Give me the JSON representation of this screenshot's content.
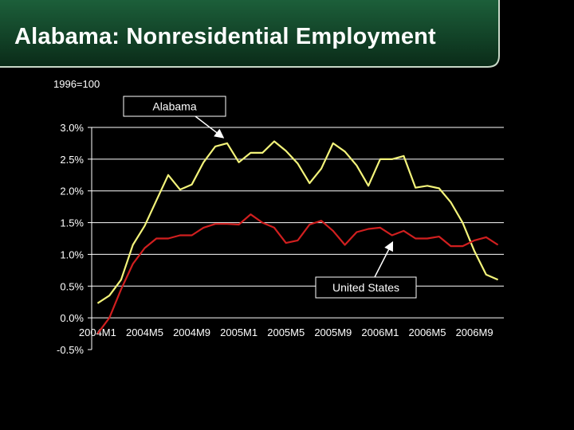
{
  "slide": {
    "title": "Alabama: Nonresidential Employment",
    "index_note": "1996=100"
  },
  "colors": {
    "header_green": "#1c5f3a",
    "header_dark": "#0a2b18",
    "background": "#000000",
    "alabama_line": "#f3f37a",
    "us_line": "#d11f1f",
    "gridline": "#ffffff"
  },
  "chart_data": {
    "type": "line",
    "x": [
      "2004M1",
      "2004M2",
      "2004M3",
      "2004M4",
      "2004M5",
      "2004M6",
      "2004M7",
      "2004M8",
      "2004M9",
      "2004M10",
      "2004M11",
      "2004M12",
      "2005M1",
      "2005M2",
      "2005M3",
      "2005M4",
      "2005M5",
      "2005M6",
      "2005M7",
      "2005M8",
      "2005M9",
      "2005M10",
      "2005M11",
      "2005M12",
      "2006M1",
      "2006M2",
      "2006M3",
      "2006M4",
      "2006M5",
      "2006M6",
      "2006M7",
      "2006M8",
      "2006M9",
      "2006M10",
      "2006M11"
    ],
    "x_tick_labels": [
      "2004M1",
      "2004M5",
      "2004M9",
      "2005M1",
      "2005M5",
      "2005M9",
      "2006M1",
      "2006M5",
      "2006M9"
    ],
    "y_tick_labels": [
      "3.0%",
      "2.5%",
      "2.0%",
      "1.5%",
      "1.0%",
      "0.5%",
      "0.0%",
      "-0.5%"
    ],
    "ylim": [
      -0.5,
      3.0
    ],
    "grid": true,
    "series": [
      {
        "name": "Alabama",
        "values": [
          0.23,
          0.35,
          0.6,
          1.15,
          1.45,
          1.85,
          2.25,
          2.02,
          2.1,
          2.45,
          2.7,
          2.75,
          2.45,
          2.6,
          2.6,
          2.78,
          2.63,
          2.43,
          2.12,
          2.35,
          2.75,
          2.62,
          2.4,
          2.08,
          2.5,
          2.5,
          2.55,
          2.05,
          2.08,
          2.04,
          1.82,
          1.5,
          1.05,
          0.68,
          0.6
        ]
      },
      {
        "name": "United States",
        "values": [
          -0.25,
          0.0,
          0.45,
          0.85,
          1.1,
          1.25,
          1.25,
          1.3,
          1.3,
          1.42,
          1.48,
          1.48,
          1.47,
          1.63,
          1.5,
          1.42,
          1.18,
          1.22,
          1.47,
          1.53,
          1.37,
          1.15,
          1.35,
          1.4,
          1.42,
          1.3,
          1.37,
          1.25,
          1.25,
          1.28,
          1.13,
          1.13,
          1.22,
          1.27,
          1.15
        ]
      }
    ],
    "annotations": [
      {
        "text": "Alabama",
        "points_to": "Alabama",
        "at_x": "2004M12"
      },
      {
        "text": "United States",
        "points_to": "United States",
        "at_x": "2006M2"
      }
    ]
  }
}
